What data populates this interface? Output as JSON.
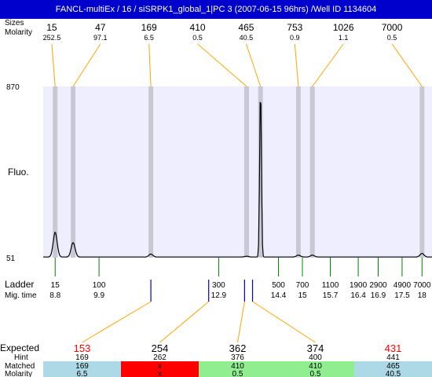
{
  "title": "FANCL-multiEx / 16 / siSRPK1_global_1|PC 3 (2007-06-15 96hrs) /Well ID 1134604",
  "chart_data": {
    "type": "line",
    "ylabel": "Fluo.",
    "ylim": [
      51,
      870
    ],
    "y_ticks": [
      "870",
      "51"
    ],
    "top_row_labels": [
      "Sizes",
      "Molarity"
    ],
    "peaks": [
      {
        "size": "15",
        "molarity": "252.5",
        "mig": 8.8,
        "height": 170
      },
      {
        "size": "47",
        "molarity": "97.1",
        "mig": 9.25,
        "height": 120
      },
      {
        "size": "169",
        "molarity": "6.5",
        "mig": 11.2,
        "height": 65
      },
      {
        "size": "410",
        "molarity": "0.5",
        "mig": 13.6,
        "height": 55
      },
      {
        "size": "465",
        "molarity": "40.5",
        "mig": 13.95,
        "height": 870
      },
      {
        "size": "753",
        "molarity": "0.9",
        "mig": 14.9,
        "height": 60
      },
      {
        "size": "1026",
        "molarity": "1.1",
        "mig": 15.25,
        "height": 60
      },
      {
        "size": "7000",
        "molarity": "0.5",
        "mig": 18.0,
        "height": 68
      }
    ],
    "ladder": {
      "label": "Ladder",
      "mig_label": "Mig. time",
      "items": [
        {
          "size": "15",
          "mig": "8.8"
        },
        {
          "size": "100",
          "mig": "9.9"
        },
        {
          "size": "300",
          "mig": "12.9"
        },
        {
          "size": "500",
          "mig": "14.4"
        },
        {
          "size": "700",
          "mig": "15"
        },
        {
          "size": "1100",
          "mig": "15.7"
        },
        {
          "size": "1900",
          "mig": "16.4"
        },
        {
          "size": "2900",
          "mig": "16.9"
        },
        {
          "size": "4900",
          "mig": "17.5"
        },
        {
          "size": "7000",
          "mig": "18"
        }
      ]
    },
    "expected_markers": [
      11.2,
      12.65,
      13.55,
      13.75
    ],
    "expected_table": {
      "row_labels": [
        "Expected",
        "Hint",
        "Matched",
        "Molarity"
      ],
      "columns": [
        {
          "expected": "153",
          "expected_color": "#ff0000",
          "hint": "169",
          "matched": "169",
          "molarity": "6.5",
          "bg": "#add8e6"
        },
        {
          "expected": "254",
          "expected_color": "#000000",
          "hint": "262",
          "matched": "x",
          "molarity": "x",
          "bg": "#ff0000"
        },
        {
          "expected": "362",
          "expected_color": "#000000",
          "hint": "376",
          "matched": "410",
          "molarity": "0.5",
          "bg": "#90ee90"
        },
        {
          "expected": "374",
          "expected_color": "#000000",
          "hint": "400",
          "matched": "410",
          "molarity": "0.5",
          "bg": "#90ee90"
        },
        {
          "expected": "431",
          "expected_color": "#ff0000",
          "hint": "441",
          "matched": "465",
          "molarity": "40.5",
          "bg": "#add8e6"
        }
      ]
    },
    "colors": {
      "title_bg": "#0000cc",
      "plot_bg": "#eeeeff",
      "peak_band": "#c8c8d4",
      "callout": "#ffa500",
      "ladder_tick": "#008000",
      "expected_tick": "#0000cc",
      "trace": "#000000"
    }
  }
}
